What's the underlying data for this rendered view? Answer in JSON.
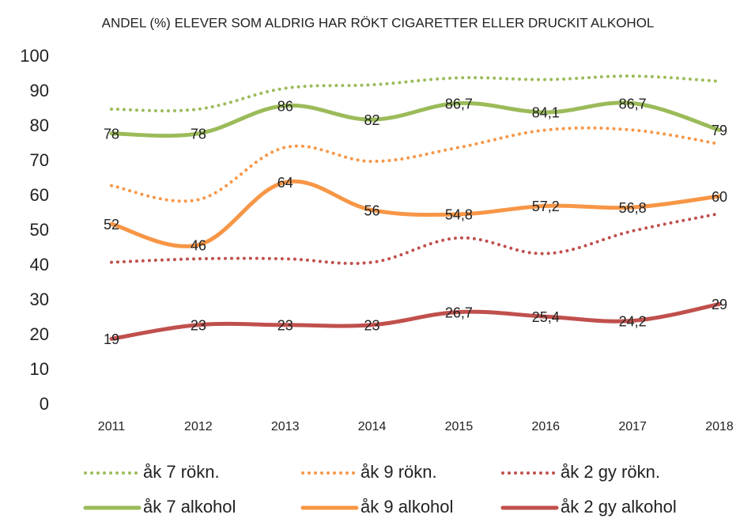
{
  "chart_data": {
    "type": "line",
    "title": "ANDEL (%) ELEVER SOM ALDRIG HAR RÖKT CIGARETTER ELLER DRUCKIT ALKOHOL",
    "categories": [
      "2011",
      "2012",
      "2013",
      "2014",
      "2015",
      "2016",
      "2017",
      "2018"
    ],
    "ylim": [
      0,
      100
    ],
    "yticks": [
      0,
      10,
      20,
      30,
      40,
      50,
      60,
      70,
      80,
      90,
      100
    ],
    "grid": false,
    "legend": "bottom",
    "series": [
      {
        "name": "åk 7 rökn.",
        "color": "#9bbb59",
        "line_style": "dotted",
        "values": [
          85,
          85,
          91,
          92,
          94,
          93.5,
          94.5,
          93
        ]
      },
      {
        "name": "åk 9 rökn.",
        "color": "#f79646",
        "line_style": "dotted",
        "values": [
          63,
          59,
          74,
          70,
          74,
          79,
          79,
          75
        ]
      },
      {
        "name": "åk 2 gy rökn.",
        "color": "#c0504d",
        "line_style": "dotted",
        "values": [
          41,
          42,
          42,
          41,
          48,
          43.5,
          50,
          55
        ]
      },
      {
        "name": "åk 7 alkohol",
        "color": "#9bbb59",
        "line_style": "solid",
        "values": [
          78,
          78,
          86,
          82,
          86.7,
          84.1,
          86.7,
          79
        ],
        "value_labels": [
          "78",
          "78",
          "86",
          "82",
          "86,7",
          "84,1",
          "86,7",
          "79"
        ]
      },
      {
        "name": "åk 9 alkohol",
        "color": "#f79646",
        "line_style": "solid",
        "values": [
          52,
          46,
          64,
          56,
          54.8,
          57.2,
          56.8,
          60
        ],
        "value_labels": [
          "52",
          "46",
          "64",
          "56",
          "54,8",
          "57,2",
          "56,8",
          "60"
        ]
      },
      {
        "name": "åk 2 gy alkohol",
        "color": "#c0504d",
        "line_style": "solid",
        "values": [
          19,
          23,
          23,
          23,
          26.7,
          25.4,
          24.2,
          29
        ],
        "value_labels": [
          "19",
          "23",
          "23",
          "23",
          "26,7",
          "25,4",
          "24,2",
          "29"
        ]
      }
    ]
  }
}
